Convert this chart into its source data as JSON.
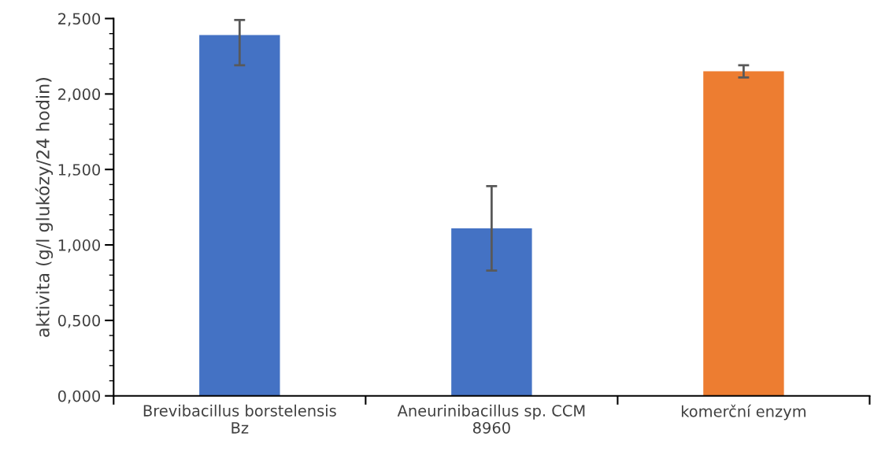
{
  "chart_data": {
    "type": "bar",
    "ylabel": "aktivita (g/l glukózy/24 hodin)",
    "categories": [
      "Brevibacillus borstelensis Bz",
      "Aneurinibacillus sp. CCM 8960",
      "komerční enzym"
    ],
    "values": [
      2.39,
      1.11,
      2.15
    ],
    "colors": [
      "#4472c4",
      "#4472c4",
      "#ed7d31"
    ],
    "errors": [
      [
        2.19,
        2.49
      ],
      [
        0.83,
        1.39
      ],
      [
        2.11,
        2.19
      ]
    ],
    "ylim": [
      0,
      2.5
    ],
    "yticks": [
      {
        "value": 0,
        "label": "0,000"
      },
      {
        "value": 0.5,
        "label": "0,500"
      },
      {
        "value": 1.0,
        "label": "1,000"
      },
      {
        "value": 1.5,
        "label": "1,500"
      },
      {
        "value": 2.0,
        "label": "2,000"
      },
      {
        "value": 2.5,
        "label": "2,500"
      },
      {
        "value": 0.1,
        "label": null
      },
      {
        "value": 0.2,
        "label": null
      },
      {
        "value": 0.3,
        "label": null
      },
      {
        "value": 0.4,
        "label": null
      },
      {
        "value": 0.6,
        "label": null
      },
      {
        "value": 0.7,
        "label": null
      },
      {
        "value": 0.8,
        "label": null
      },
      {
        "value": 0.9,
        "label": null
      },
      {
        "value": 1.1,
        "label": null
      },
      {
        "value": 1.2,
        "label": null
      },
      {
        "value": 1.3,
        "label": null
      },
      {
        "value": 1.4,
        "label": null
      },
      {
        "value": 1.6,
        "label": null
      },
      {
        "value": 1.7,
        "label": null
      },
      {
        "value": 1.8,
        "label": null
      },
      {
        "value": 1.9,
        "label": null
      },
      {
        "value": 2.1,
        "label": null
      },
      {
        "value": 2.2,
        "label": null
      },
      {
        "value": 2.3,
        "label": null
      },
      {
        "value": 2.4,
        "label": null
      }
    ],
    "grid": false
  }
}
